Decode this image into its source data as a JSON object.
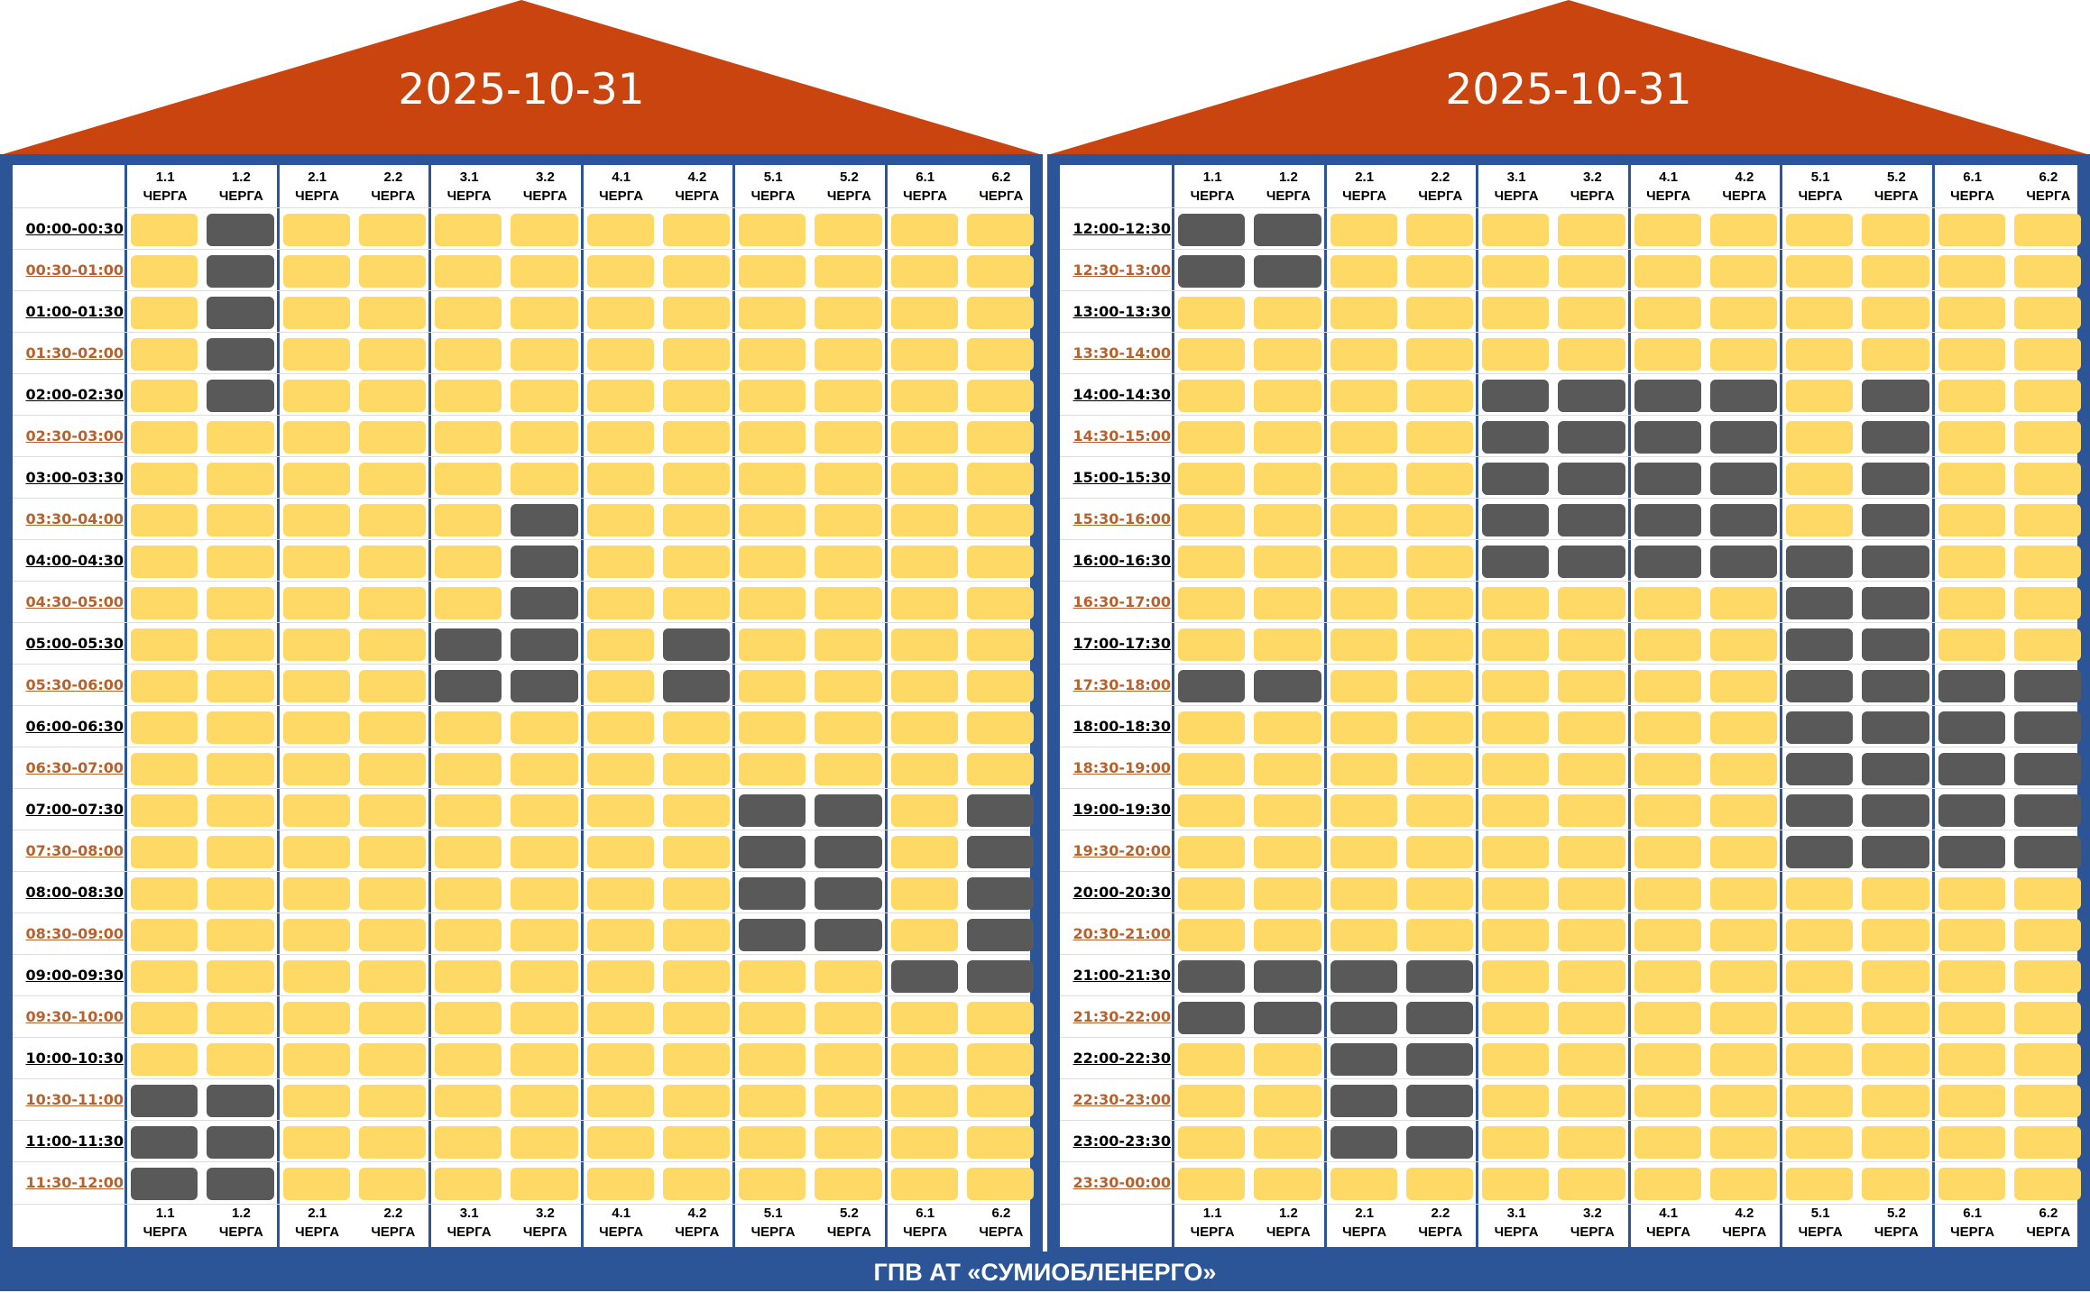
{
  "colors": {
    "roof": "#c9440e",
    "frame": "#2c5597",
    "power_on": "#fed966",
    "power_off": "#595959",
    "odd_time": "#b5622f"
  },
  "queues": [
    {
      "num": "1.1",
      "word": "ЧЕРГА"
    },
    {
      "num": "1.2",
      "word": "ЧЕРГА"
    },
    {
      "num": "2.1",
      "word": "ЧЕРГА"
    },
    {
      "num": "2.2",
      "word": "ЧЕРГА"
    },
    {
      "num": "3.1",
      "word": "ЧЕРГА"
    },
    {
      "num": "3.2",
      "word": "ЧЕРГА"
    },
    {
      "num": "4.1",
      "word": "ЧЕРГА"
    },
    {
      "num": "4.2",
      "word": "ЧЕРГА"
    },
    {
      "num": "5.1",
      "word": "ЧЕРГА"
    },
    {
      "num": "5.2",
      "word": "ЧЕРГА"
    },
    {
      "num": "6.1",
      "word": "ЧЕРГА"
    },
    {
      "num": "6.2",
      "word": "ЧЕРГА"
    }
  ],
  "panels": [
    {
      "date": "2025-10-31",
      "rows": [
        {
          "time": "00:00-00:30",
          "off": [
            1
          ]
        },
        {
          "time": "00:30-01:00",
          "off": [
            1
          ]
        },
        {
          "time": "01:00-01:30",
          "off": [
            1
          ]
        },
        {
          "time": "01:30-02:00",
          "off": [
            1
          ]
        },
        {
          "time": "02:00-02:30",
          "off": [
            1
          ]
        },
        {
          "time": "02:30-03:00",
          "off": []
        },
        {
          "time": "03:00-03:30",
          "off": []
        },
        {
          "time": "03:30-04:00",
          "off": [
            5
          ]
        },
        {
          "time": "04:00-04:30",
          "off": [
            5
          ]
        },
        {
          "time": "04:30-05:00",
          "off": [
            5
          ]
        },
        {
          "time": "05:00-05:30",
          "off": [
            4,
            5,
            7
          ]
        },
        {
          "time": "05:30-06:00",
          "off": [
            4,
            5,
            7
          ]
        },
        {
          "time": "06:00-06:30",
          "off": []
        },
        {
          "time": "06:30-07:00",
          "off": []
        },
        {
          "time": "07:00-07:30",
          "off": [
            8,
            9,
            11
          ]
        },
        {
          "time": "07:30-08:00",
          "off": [
            8,
            9,
            11
          ]
        },
        {
          "time": "08:00-08:30",
          "off": [
            8,
            9,
            11
          ]
        },
        {
          "time": "08:30-09:00",
          "off": [
            8,
            9,
            11
          ]
        },
        {
          "time": "09:00-09:30",
          "off": [
            10,
            11
          ]
        },
        {
          "time": "09:30-10:00",
          "off": []
        },
        {
          "time": "10:00-10:30",
          "off": []
        },
        {
          "time": "10:30-11:00",
          "off": [
            0,
            1
          ]
        },
        {
          "time": "11:00-11:30",
          "off": [
            0,
            1
          ]
        },
        {
          "time": "11:30-12:00",
          "off": [
            0,
            1
          ]
        }
      ]
    },
    {
      "date": "2025-10-31",
      "rows": [
        {
          "time": "12:00-12:30",
          "off": [
            0,
            1
          ]
        },
        {
          "time": "12:30-13:00",
          "off": [
            0,
            1
          ]
        },
        {
          "time": "13:00-13:30",
          "off": []
        },
        {
          "time": "13:30-14:00",
          "off": []
        },
        {
          "time": "14:00-14:30",
          "off": [
            4,
            5,
            6,
            7,
            9
          ]
        },
        {
          "time": "14:30-15:00",
          "off": [
            4,
            5,
            6,
            7,
            9
          ]
        },
        {
          "time": "15:00-15:30",
          "off": [
            4,
            5,
            6,
            7,
            9
          ]
        },
        {
          "time": "15:30-16:00",
          "off": [
            4,
            5,
            6,
            7,
            9
          ]
        },
        {
          "time": "16:00-16:30",
          "off": [
            4,
            5,
            6,
            7,
            8,
            9
          ]
        },
        {
          "time": "16:30-17:00",
          "off": [
            8,
            9
          ]
        },
        {
          "time": "17:00-17:30",
          "off": [
            8,
            9
          ]
        },
        {
          "time": "17:30-18:00",
          "off": [
            0,
            1,
            8,
            9,
            10,
            11
          ]
        },
        {
          "time": "18:00-18:30",
          "off": [
            8,
            9,
            10,
            11
          ]
        },
        {
          "time": "18:30-19:00",
          "off": [
            8,
            9,
            10,
            11
          ]
        },
        {
          "time": "19:00-19:30",
          "off": [
            8,
            9,
            10,
            11
          ]
        },
        {
          "time": "19:30-20:00",
          "off": [
            8,
            9,
            10,
            11
          ]
        },
        {
          "time": "20:00-20:30",
          "off": []
        },
        {
          "time": "20:30-21:00",
          "off": []
        },
        {
          "time": "21:00-21:30",
          "off": [
            0,
            1,
            2,
            3
          ]
        },
        {
          "time": "21:30-22:00",
          "off": [
            0,
            1,
            2,
            3
          ]
        },
        {
          "time": "22:00-22:30",
          "off": [
            2,
            3
          ]
        },
        {
          "time": "22:30-23:00",
          "off": [
            2,
            3
          ]
        },
        {
          "time": "23:00-23:30",
          "off": [
            2,
            3
          ]
        },
        {
          "time": "23:30-00:00",
          "off": []
        }
      ]
    }
  ],
  "footer": "ГПВ АТ «СУМИОБЛЕНЕРГО»"
}
